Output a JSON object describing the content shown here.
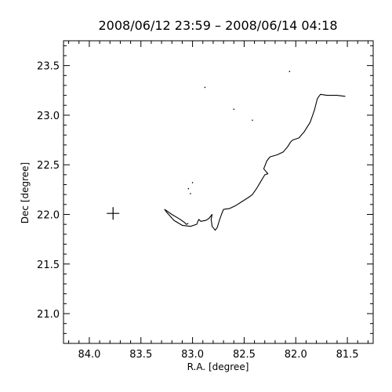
{
  "chart_data": {
    "type": "line",
    "title": "2008/06/12 23:59 – 2008/06/14 04:18",
    "xlabel": "R.A. [degree]",
    "ylabel": "Dec [degree]",
    "xlim": [
      84.25,
      81.25
    ],
    "ylim": [
      20.7,
      23.75
    ],
    "x_ticks": [
      "84.0",
      "83.5",
      "83.0",
      "82.5",
      "82.0",
      "81.5"
    ],
    "x_tick_values": [
      84.0,
      83.5,
      83.0,
      82.5,
      82.0,
      81.5
    ],
    "y_ticks": [
      "21.0",
      "21.5",
      "22.0",
      "22.5",
      "23.0",
      "23.5"
    ],
    "y_tick_values": [
      21.0,
      21.5,
      22.0,
      22.5,
      23.0,
      23.5
    ],
    "grid": false,
    "line_color": "#000000",
    "marker": {
      "symbol": "plus",
      "x": 83.77,
      "y": 22.01
    },
    "series": [
      {
        "points": [
          [
            81.52,
            23.19
          ],
          [
            81.6,
            23.2
          ],
          [
            81.7,
            23.2
          ],
          [
            81.76,
            23.21
          ],
          [
            81.79,
            23.17
          ],
          [
            81.82,
            23.05
          ],
          [
            81.86,
            22.93
          ],
          [
            81.92,
            22.83
          ],
          [
            81.97,
            22.77
          ],
          [
            82.03,
            22.75
          ],
          [
            82.05,
            22.73
          ],
          [
            82.08,
            22.68
          ],
          [
            82.12,
            22.63
          ],
          [
            82.18,
            22.6
          ],
          [
            82.25,
            22.58
          ],
          [
            82.28,
            22.54
          ],
          [
            82.31,
            22.46
          ],
          [
            82.27,
            22.41
          ],
          [
            82.3,
            22.4
          ],
          [
            82.34,
            22.33
          ],
          [
            82.38,
            22.26
          ],
          [
            82.42,
            22.2
          ],
          [
            82.46,
            22.17
          ],
          [
            82.52,
            22.13
          ],
          [
            82.58,
            22.09
          ],
          [
            82.64,
            22.06
          ],
          [
            82.7,
            22.05
          ],
          [
            82.72,
            22.0
          ],
          [
            82.74,
            21.94
          ],
          [
            82.76,
            21.87
          ],
          [
            82.78,
            21.84
          ],
          [
            82.81,
            21.88
          ],
          [
            82.82,
            21.95
          ],
          [
            82.81,
            22.0
          ],
          [
            82.84,
            21.96
          ],
          [
            82.87,
            21.94
          ],
          [
            82.92,
            21.93
          ],
          [
            82.94,
            21.95
          ],
          [
            82.96,
            21.9
          ],
          [
            83.02,
            21.88
          ],
          [
            83.1,
            21.89
          ],
          [
            83.18,
            21.94
          ],
          [
            83.25,
            22.02
          ],
          [
            83.27,
            22.05
          ],
          [
            83.2,
            22.0
          ],
          [
            83.12,
            21.95
          ],
          [
            83.08,
            21.92
          ],
          [
            83.06,
            21.9
          ],
          [
            83.04,
            21.91
          ]
        ]
      }
    ],
    "scatter_points": [
      [
        82.06,
        23.44
      ],
      [
        82.88,
        23.28
      ],
      [
        82.6,
        23.06
      ],
      [
        83.0,
        22.32
      ],
      [
        83.04,
        22.26
      ],
      [
        83.02,
        22.21
      ],
      [
        82.42,
        22.95
      ]
    ]
  }
}
